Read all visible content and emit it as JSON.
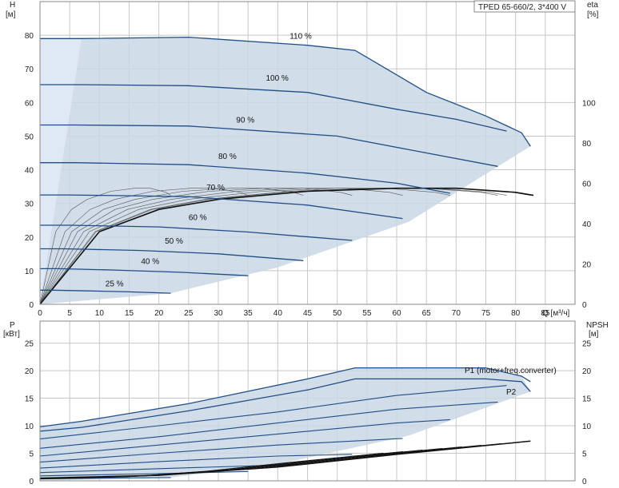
{
  "title": "TPED 65-660/2, 3*400 V",
  "colors": {
    "grid": "#c8c8c8",
    "frame": "#888888",
    "envelope": "#c9d7e5",
    "light_zone": "#e6f0fa",
    "curve": "#1f4e86",
    "black_curve": "#111111",
    "thin_curve": "#555555",
    "label": "#2f5fa0"
  },
  "top_chart": {
    "y_label_top": "H",
    "y_unit": "[м]",
    "right_label_top": "eta",
    "right_unit": "[%]",
    "x_label": "Q [м³/ч]",
    "y_ticks": [
      "0",
      "10",
      "20",
      "30",
      "40",
      "50",
      "60",
      "70",
      "80"
    ],
    "right_ticks": [
      "0",
      "20",
      "40",
      "60",
      "80",
      "100"
    ],
    "x_ticks": [
      "0",
      "5",
      "10",
      "15",
      "20",
      "25",
      "30",
      "35",
      "40",
      "45",
      "50",
      "55",
      "60",
      "65",
      "70",
      "75",
      "80",
      "85"
    ]
  },
  "bottom_chart": {
    "y_label_top": "P",
    "y_unit": "[кВт]",
    "right_label_top": "NPSH",
    "right_unit": "[м]",
    "y_ticks": [
      "0",
      "5",
      "10",
      "15",
      "20",
      "25"
    ],
    "right_ticks": [
      "0",
      "5",
      "10",
      "15",
      "20",
      "25"
    ],
    "series_labels": [
      "P1 (motor+freq.converter)",
      "P2"
    ]
  },
  "chart_data": [
    {
      "type": "line",
      "title": "TPED 65-660/2, 3*400 V",
      "xlabel": "Q [м³/ч]",
      "ylabel": "H [м]",
      "y2label": "eta [%]",
      "xlim": [
        0,
        90
      ],
      "ylim": [
        0,
        90
      ],
      "y2lim": [
        0,
        150
      ],
      "grid": true,
      "series": [
        {
          "name": "110 %",
          "x": [
            0,
            7,
            25,
            45,
            53,
            65,
            75,
            81,
            82.5
          ],
          "y": [
            79,
            79,
            79.4,
            77,
            75.5,
            63,
            56,
            51,
            47
          ]
        },
        {
          "name": "100 %",
          "x": [
            0,
            7,
            25,
            45,
            60,
            70,
            78.5
          ],
          "y": [
            65.3,
            65.3,
            65,
            63,
            58,
            55,
            51.5
          ]
        },
        {
          "name": "90 %",
          "x": [
            0,
            6,
            25,
            50,
            65,
            77
          ],
          "y": [
            53.3,
            53.3,
            53,
            50,
            45,
            41
          ]
        },
        {
          "name": "80 %",
          "x": [
            0,
            6,
            25,
            45,
            60,
            69
          ],
          "y": [
            42.1,
            42.1,
            41.5,
            39,
            36,
            33
          ]
        },
        {
          "name": "70 %",
          "x": [
            0,
            5,
            25,
            45,
            61
          ],
          "y": [
            32.5,
            32.5,
            32,
            29.5,
            25.5
          ]
        },
        {
          "name": "60 %",
          "x": [
            0,
            5,
            20,
            35,
            52.5
          ],
          "y": [
            23.5,
            23.5,
            23,
            21.5,
            19
          ]
        },
        {
          "name": "50 %",
          "x": [
            0,
            4,
            17,
            30,
            44.3
          ],
          "y": [
            16.5,
            16.5,
            16,
            15,
            13
          ]
        },
        {
          "name": "40 %",
          "x": [
            0,
            3,
            12,
            24,
            35
          ],
          "y": [
            10.6,
            10.6,
            10.2,
            9.5,
            8.5
          ]
        },
        {
          "name": "25 %",
          "x": [
            0,
            2,
            8,
            15,
            22
          ],
          "y": [
            4.2,
            4.2,
            4,
            3.7,
            3.3
          ]
        }
      ],
      "efficiency": {
        "x": [
          0,
          10,
          20,
          30,
          45,
          60,
          70,
          80,
          83
        ],
        "y": [
          0,
          36,
          47,
          52,
          56,
          57.5,
          57.5,
          55.5,
          54
        ]
      },
      "envelope": {
        "x": [
          0,
          0,
          7,
          25,
          45,
          53,
          65,
          75,
          81,
          82.5,
          62,
          40,
          22,
          0
        ],
        "y": [
          0,
          79,
          79,
          79.4,
          77,
          75.5,
          63,
          56,
          51,
          47,
          24.5,
          11,
          3.3,
          0
        ]
      }
    },
    {
      "type": "line",
      "ylabel": "P [кВт]",
      "y2label": "NPSH [м]",
      "xlim": [
        0,
        90
      ],
      "ylim": [
        0,
        29
      ],
      "y2lim": [
        0,
        29
      ],
      "grid": true,
      "series": [
        {
          "name": "P1 (motor+freq.converter)",
          "x": [
            0,
            7,
            25,
            45,
            53,
            65,
            75,
            81,
            82.5
          ],
          "y": [
            9.8,
            10.8,
            14,
            18.5,
            20.5,
            20.5,
            20.5,
            19,
            18
          ]
        },
        {
          "name": "P2",
          "x": [
            0,
            7,
            25,
            45,
            53,
            65,
            75,
            81,
            82.5
          ],
          "y": [
            9,
            9.7,
            12.7,
            16.5,
            18.5,
            18.5,
            18.5,
            18,
            16.2
          ]
        },
        {
          "name": "100 %",
          "x": [
            0,
            20,
            40,
            60,
            78.5
          ],
          "y": [
            7.6,
            10,
            12.5,
            15.5,
            17.3
          ]
        },
        {
          "name": "90 %",
          "x": [
            0,
            20,
            40,
            60,
            77
          ],
          "y": [
            5.9,
            8,
            10.5,
            13,
            14.3
          ]
        },
        {
          "name": "80 %",
          "x": [
            0,
            20,
            40,
            60,
            69
          ],
          "y": [
            4.5,
            6.5,
            8.5,
            10.5,
            11.1
          ]
        },
        {
          "name": "70 %",
          "x": [
            0,
            20,
            40,
            61
          ],
          "y": [
            3.4,
            5,
            6.5,
            7.7
          ]
        },
        {
          "name": "60 %",
          "x": [
            0,
            20,
            40,
            52.5
          ],
          "y": [
            2.3,
            3.5,
            4.5,
            4.8
          ]
        },
        {
          "name": "50 %",
          "x": [
            0,
            20,
            44.3
          ],
          "y": [
            1.5,
            2.2,
            3
          ]
        },
        {
          "name": "40 %",
          "x": [
            0,
            20,
            35
          ],
          "y": [
            0.9,
            1.3,
            1.7
          ]
        },
        {
          "name": "25 %",
          "x": [
            0,
            12,
            22
          ],
          "y": [
            0.35,
            0.5,
            0.6
          ]
        }
      ],
      "npsh": {
        "x": [
          0,
          20,
          40,
          60,
          82.5
        ],
        "y": [
          0.5,
          1,
          2.5,
          4.8,
          7.2
        ]
      },
      "envelope": {
        "x": [
          0,
          0,
          7,
          25,
          45,
          53,
          65,
          75,
          81,
          82.5,
          62,
          40,
          22,
          0
        ],
        "y": [
          0,
          9.8,
          10.8,
          14,
          18.5,
          20.5,
          20.5,
          20.5,
          19,
          16.2,
          8.2,
          3,
          0.6,
          0
        ]
      }
    }
  ]
}
